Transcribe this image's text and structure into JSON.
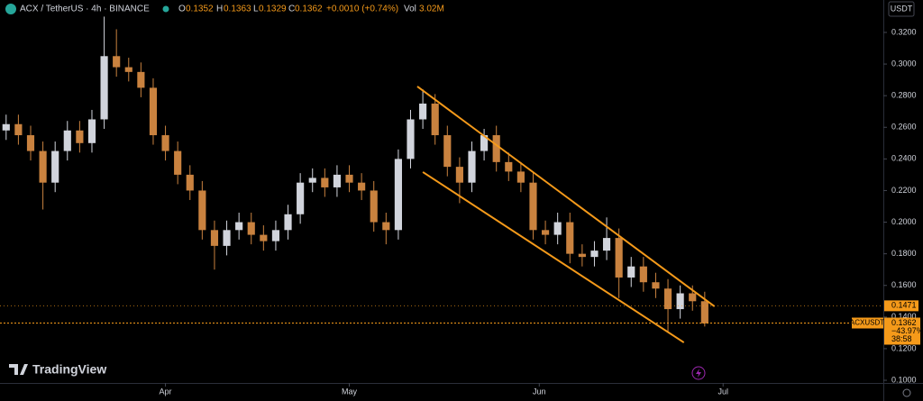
{
  "chart_data": {
    "type": "candlestick",
    "title": "ACX / TetherUS · 4h · BINANCE",
    "legend": {
      "O": "0.1352",
      "H": "0.1363",
      "L": "0.1329",
      "C": "0.1362",
      "change": "+0.0010 (+0.74%)",
      "Vol": "3.02M"
    },
    "currency": "USDT",
    "symbol": "ACXUSDT",
    "brand": "TradingView",
    "x": [
      1,
      3,
      5,
      7,
      9,
      11,
      13,
      15,
      17,
      19,
      21,
      23,
      25,
      27,
      29,
      31,
      33,
      35,
      37,
      39,
      41,
      43,
      45,
      47,
      49,
      51,
      53,
      55,
      57,
      59,
      61,
      63,
      65,
      67,
      69,
      71,
      73,
      75,
      77,
      79,
      81,
      83,
      85,
      87,
      89,
      91,
      93,
      95,
      97,
      99,
      101,
      103,
      105,
      107,
      109,
      111,
      113,
      115
    ],
    "open": [
      0.258,
      0.262,
      0.255,
      0.245,
      0.225,
      0.245,
      0.258,
      0.25,
      0.265,
      0.305,
      0.298,
      0.295,
      0.285,
      0.255,
      0.245,
      0.23,
      0.22,
      0.195,
      0.185,
      0.195,
      0.2,
      0.192,
      0.188,
      0.195,
      0.205,
      0.225,
      0.228,
      0.222,
      0.23,
      0.225,
      0.22,
      0.2,
      0.195,
      0.24,
      0.265,
      0.275,
      0.255,
      0.235,
      0.225,
      0.245,
      0.255,
      0.238,
      0.232,
      0.225,
      0.195,
      0.192,
      0.2,
      0.18,
      0.178,
      0.182,
      0.19,
      0.165,
      0.172,
      0.162,
      0.158,
      0.145,
      0.155,
      0.15
    ],
    "high": [
      0.268,
      0.268,
      0.261,
      0.251,
      0.251,
      0.264,
      0.264,
      0.271,
      0.33,
      0.322,
      0.304,
      0.301,
      0.291,
      0.261,
      0.251,
      0.236,
      0.226,
      0.201,
      0.201,
      0.206,
      0.206,
      0.198,
      0.201,
      0.211,
      0.231,
      0.234,
      0.234,
      0.236,
      0.236,
      0.231,
      0.226,
      0.206,
      0.246,
      0.271,
      0.284,
      0.281,
      0.261,
      0.241,
      0.251,
      0.259,
      0.261,
      0.244,
      0.238,
      0.231,
      0.201,
      0.206,
      0.206,
      0.186,
      0.188,
      0.203,
      0.196,
      0.178,
      0.178,
      0.168,
      0.164,
      0.16,
      0.16,
      0.156
    ],
    "low": [
      0.252,
      0.249,
      0.239,
      0.208,
      0.219,
      0.239,
      0.244,
      0.244,
      0.259,
      0.292,
      0.289,
      0.279,
      0.249,
      0.239,
      0.224,
      0.214,
      0.189,
      0.17,
      0.179,
      0.189,
      0.186,
      0.182,
      0.182,
      0.189,
      0.199,
      0.219,
      0.216,
      0.216,
      0.219,
      0.214,
      0.194,
      0.186,
      0.189,
      0.234,
      0.259,
      0.249,
      0.229,
      0.212,
      0.219,
      0.239,
      0.232,
      0.226,
      0.219,
      0.189,
      0.186,
      0.186,
      0.174,
      0.172,
      0.172,
      0.176,
      0.152,
      0.159,
      0.156,
      0.152,
      0.13,
      0.139,
      0.144,
      0.134
    ],
    "close": [
      0.262,
      0.255,
      0.245,
      0.225,
      0.245,
      0.258,
      0.25,
      0.265,
      0.305,
      0.298,
      0.295,
      0.285,
      0.255,
      0.245,
      0.23,
      0.22,
      0.195,
      0.185,
      0.195,
      0.2,
      0.192,
      0.188,
      0.195,
      0.205,
      0.225,
      0.228,
      0.222,
      0.23,
      0.225,
      0.22,
      0.2,
      0.195,
      0.24,
      0.265,
      0.275,
      0.255,
      0.235,
      0.225,
      0.245,
      0.255,
      0.238,
      0.232,
      0.225,
      0.195,
      0.192,
      0.2,
      0.18,
      0.178,
      0.182,
      0.19,
      0.165,
      0.172,
      0.162,
      0.158,
      0.145,
      0.155,
      0.15,
      0.136
    ],
    "up_color": "#d1d4dc",
    "down_color": "#c9823f",
    "xlim": [
      0,
      144
    ],
    "ylim": [
      0.0983,
      0.3405
    ],
    "xticks": [
      {
        "value": 27,
        "label": "Apr"
      },
      {
        "value": 57,
        "label": "May"
      },
      {
        "value": 88,
        "label": "Jun"
      },
      {
        "value": 118,
        "label": "Jul"
      }
    ],
    "yticks": [
      {
        "value": 0.1,
        "label": "0.1000"
      },
      {
        "value": 0.12,
        "label": "0.1200"
      },
      {
        "value": 0.14,
        "label": "0.1400"
      },
      {
        "value": 0.16,
        "label": "0.1600"
      },
      {
        "value": 0.18,
        "label": "0.1800"
      },
      {
        "value": 0.2,
        "label": "0.2000"
      },
      {
        "value": 0.22,
        "label": "0.2200"
      },
      {
        "value": 0.24,
        "label": "0.2400"
      },
      {
        "value": 0.26,
        "label": "0.2600"
      },
      {
        "value": 0.28,
        "label": "0.2800"
      },
      {
        "value": 0.3,
        "label": "0.3000"
      },
      {
        "value": 0.32,
        "label": "0.3200"
      }
    ],
    "channel": {
      "color": "#f59a1a",
      "lines": [
        {
          "x": [
            68.1,
            116.6
          ],
          "y": [
            0.2858,
            0.1467
          ]
        },
        {
          "x": [
            69,
            111.6
          ],
          "y": [
            0.2317,
            0.1239
          ]
        }
      ]
    },
    "price_lines": [
      {
        "value": 0.1471,
        "color": "#f59a1a"
      },
      {
        "value": 0.1362,
        "color": "#f59a1a",
        "change": "−43.97%",
        "countdown": "38:58"
      }
    ]
  }
}
